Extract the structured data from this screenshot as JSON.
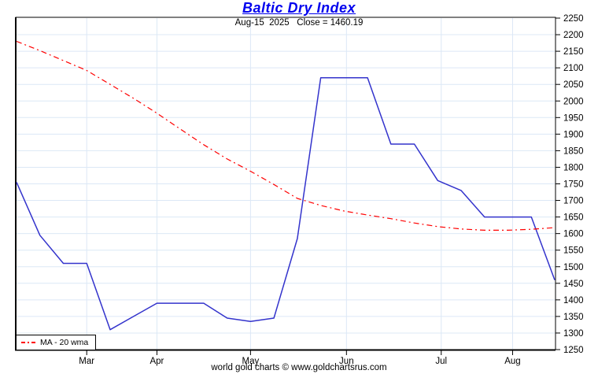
{
  "page": {
    "title": "Baltic Dry Index",
    "subtitle": "Aug-15  2025   Close = 1460.19",
    "footer": "world gold charts © www.goldchartsrus.com"
  },
  "colors": {
    "title": "#0000ee",
    "index_line": "#3333cc",
    "ma_line": "#ff0000",
    "grid": "#dce8f6",
    "frame": "#000000",
    "background": "#ffffff"
  },
  "chart_data": {
    "type": "line",
    "title": "Baltic Dry Index",
    "subtitle_date": "Aug-15 2025",
    "close": 1460.19,
    "grid": true,
    "ylim": [
      1250,
      2250
    ],
    "y_tick_step": 50,
    "y_ticks": [
      1250,
      1300,
      1350,
      1400,
      1450,
      1500,
      1550,
      1600,
      1650,
      1700,
      1750,
      1800,
      1850,
      1900,
      1950,
      2000,
      2050,
      2100,
      2150,
      2200,
      2250
    ],
    "x_ticks": [
      {
        "label": "Mar",
        "pos": 3.0
      },
      {
        "label": "Apr",
        "pos": 6.0
      },
      {
        "label": "May",
        "pos": 10.0
      },
      {
        "label": "Jun",
        "pos": 14.1
      },
      {
        "label": "Jul",
        "pos": 18.15
      },
      {
        "label": "Aug",
        "pos": 21.2
      }
    ],
    "x_unit": "weeks (Feb–Aug 2025)",
    "series": [
      {
        "name": "Baltic Dry Index",
        "color": "#3333cc",
        "style": "solid",
        "values": [
          1755,
          1595,
          1510,
          1510,
          1310,
          1350,
          1390,
          1390,
          1390,
          1345,
          1335,
          1345,
          1585,
          2070,
          2070,
          2070,
          1870,
          1870,
          1760,
          1730,
          1650,
          1650,
          1650,
          1460
        ]
      },
      {
        "name": "MA - 20 wma",
        "color": "#ff0000",
        "style": "dash-dot",
        "values": [
          2180,
          2152,
          2122,
          2092,
          2050,
          2008,
          1963,
          1915,
          1868,
          1825,
          1788,
          1748,
          1706,
          1685,
          1668,
          1656,
          1645,
          1632,
          1621,
          1614,
          1610,
          1610,
          1613,
          1618
        ]
      }
    ],
    "legend": {
      "label": "MA - 20 wma",
      "position": "bottom-left"
    }
  }
}
